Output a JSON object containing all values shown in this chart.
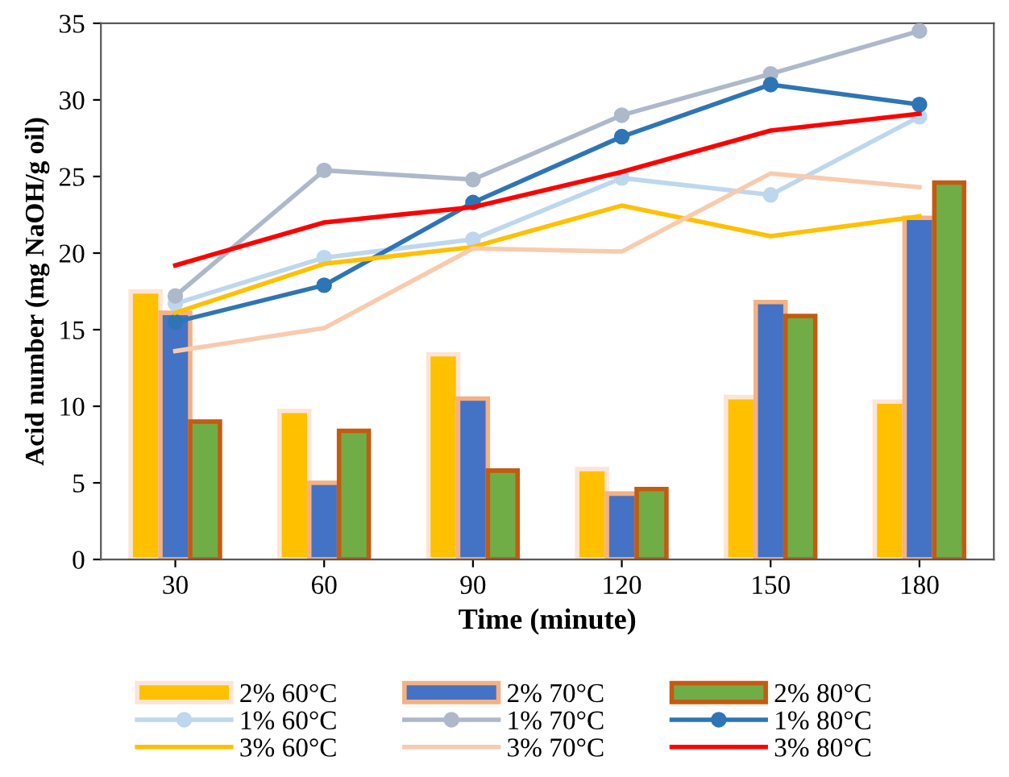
{
  "chart_data": {
    "type": "bar",
    "xlabel": "Time (minute)",
    "ylabel": "Acid number (mg NaOH/g oil)",
    "categories": [
      "30",
      "60",
      "90",
      "120",
      "150",
      "180"
    ],
    "ylim": [
      0,
      35
    ],
    "yticks": [
      0,
      5,
      10,
      15,
      20,
      25,
      30,
      35
    ],
    "grid": false,
    "legend": "bottom",
    "series": [
      {
        "name": "2% 60°C",
        "color": "#ffc000",
        "values": [
          17.5,
          9.7,
          13.4,
          5.9,
          10.6,
          10.3
        ]
      },
      {
        "name": "2% 70°C",
        "color": "#4472c4",
        "values": [
          16.1,
          5.0,
          10.5,
          4.3,
          16.8,
          22.3
        ]
      },
      {
        "name": "2% 80°C",
        "color": "#70ad47",
        "values": [
          9.0,
          8.4,
          5.8,
          4.6,
          15.9,
          24.6
        ]
      },
      {
        "name": "1% 60°C",
        "type": "line",
        "color": "#bdd7ee",
        "marker": "circle",
        "values": [
          16.7,
          19.7,
          20.9,
          24.9,
          23.8,
          28.9
        ]
      },
      {
        "name": "1% 70°C",
        "type": "line",
        "color": "#adb9ca",
        "marker": "circle",
        "values": [
          17.2,
          25.4,
          24.8,
          29.0,
          31.7,
          34.5
        ]
      },
      {
        "name": "1% 80°C",
        "type": "line",
        "color": "#2e75b6",
        "marker": "circle",
        "values": [
          15.5,
          17.9,
          23.3,
          27.6,
          31.0,
          29.7
        ]
      },
      {
        "name": "3% 60°C",
        "type": "line",
        "color": "#ffc000",
        "values": [
          16.1,
          19.3,
          20.4,
          23.1,
          21.1,
          22.4
        ]
      },
      {
        "name": "3% 70°C",
        "type": "line",
        "color": "#f8cbad",
        "values": [
          13.6,
          15.1,
          20.3,
          20.1,
          25.2,
          24.3
        ]
      },
      {
        "name": "3% 80°C",
        "type": "line",
        "color": "#ff0000",
        "values": [
          19.2,
          22.0,
          23.0,
          25.3,
          28.0,
          29.1
        ]
      }
    ]
  }
}
